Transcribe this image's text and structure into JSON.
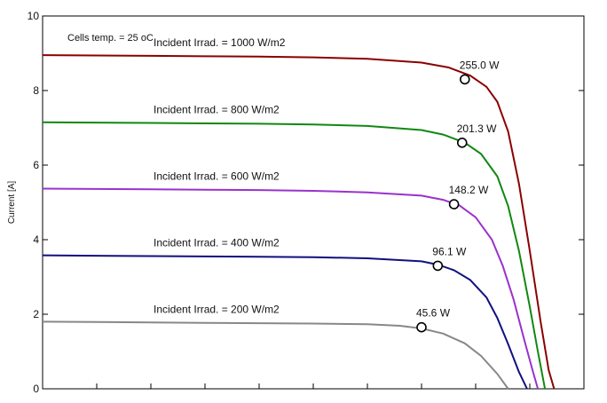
{
  "chart_data": {
    "type": "line",
    "title": "",
    "xlabel": "",
    "ylabel": "Current [A]",
    "ylim": [
      0,
      10
    ],
    "yticks": [
      0,
      2,
      4,
      6,
      8,
      10
    ],
    "ytick_labels": [
      "0",
      "2",
      "4",
      "6",
      "8",
      "10"
    ],
    "xlim": [
      0,
      10
    ],
    "x_tick_count": 9,
    "grid": false,
    "legend": "none",
    "note": "Cells temp. = 25 oC",
    "series": [
      {
        "name": "Incident Irrad. = 1000 W/m2",
        "label": "Incident Irrad. = 1000 W/m2",
        "color": "#8b0000",
        "x": [
          0.0,
          1.0,
          2.0,
          3.0,
          4.0,
          5.0,
          6.0,
          7.0,
          7.5,
          7.9,
          8.2,
          8.4,
          8.6,
          8.8,
          9.0,
          9.2,
          9.35,
          9.45
        ],
        "y": [
          8.95,
          8.94,
          8.93,
          8.92,
          8.91,
          8.89,
          8.85,
          8.75,
          8.62,
          8.4,
          8.1,
          7.7,
          6.9,
          5.5,
          3.7,
          1.8,
          0.5,
          0.0
        ],
        "mpp": {
          "x": 7.8,
          "y": 8.3,
          "label": "255.0 W"
        }
      },
      {
        "name": "Incident Irrad. = 800 W/m2",
        "label": "Incident Irrad. = 800 W/m2",
        "color": "#118811",
        "x": [
          0.0,
          1.0,
          2.0,
          3.0,
          4.0,
          5.0,
          6.0,
          7.0,
          7.4,
          7.8,
          8.1,
          8.4,
          8.6,
          8.8,
          9.0,
          9.15,
          9.28
        ],
        "y": [
          7.15,
          7.14,
          7.13,
          7.12,
          7.11,
          7.09,
          7.05,
          6.94,
          6.82,
          6.6,
          6.3,
          5.7,
          4.9,
          3.7,
          2.2,
          1.0,
          0.0
        ],
        "mpp": {
          "x": 7.75,
          "y": 6.6,
          "label": "201.3 W"
        }
      },
      {
        "name": "Incident Irrad. = 600 W/m2",
        "label": "Incident Irrad. = 600 W/m2",
        "color": "#9a32cd",
        "x": [
          0.0,
          1.0,
          2.0,
          3.0,
          4.0,
          5.0,
          6.0,
          7.0,
          7.4,
          7.7,
          8.0,
          8.3,
          8.5,
          8.7,
          8.9,
          9.05,
          9.15
        ],
        "y": [
          5.37,
          5.36,
          5.35,
          5.34,
          5.33,
          5.31,
          5.27,
          5.18,
          5.07,
          4.92,
          4.6,
          4.0,
          3.3,
          2.4,
          1.3,
          0.5,
          0.0
        ],
        "mpp": {
          "x": 7.6,
          "y": 4.95,
          "label": "148.2 W"
        }
      },
      {
        "name": "Incident Irrad. = 400 W/m2",
        "label": "Incident Irrad. = 400 W/m2",
        "color": "#101080",
        "x": [
          0.0,
          1.0,
          2.0,
          3.0,
          4.0,
          5.0,
          6.0,
          7.0,
          7.3,
          7.6,
          7.9,
          8.2,
          8.4,
          8.6,
          8.8,
          8.95
        ],
        "y": [
          3.58,
          3.57,
          3.56,
          3.55,
          3.54,
          3.53,
          3.5,
          3.42,
          3.33,
          3.18,
          2.92,
          2.45,
          1.9,
          1.2,
          0.45,
          0.0
        ],
        "mpp": {
          "x": 7.3,
          "y": 3.3,
          "label": "96.1 W"
        }
      },
      {
        "name": "Incident Irrad. = 200 W/m2",
        "label": "Incident Irrad. = 200 W/m2",
        "color": "#888888",
        "x": [
          0.0,
          1.0,
          2.0,
          3.0,
          4.0,
          5.0,
          6.0,
          6.6,
          7.0,
          7.4,
          7.8,
          8.1,
          8.4,
          8.6
        ],
        "y": [
          1.8,
          1.79,
          1.78,
          1.77,
          1.76,
          1.75,
          1.73,
          1.69,
          1.62,
          1.48,
          1.22,
          0.88,
          0.4,
          0.0
        ],
        "mpp": {
          "x": 7.0,
          "y": 1.65,
          "label": "45.6 W"
        }
      }
    ]
  }
}
